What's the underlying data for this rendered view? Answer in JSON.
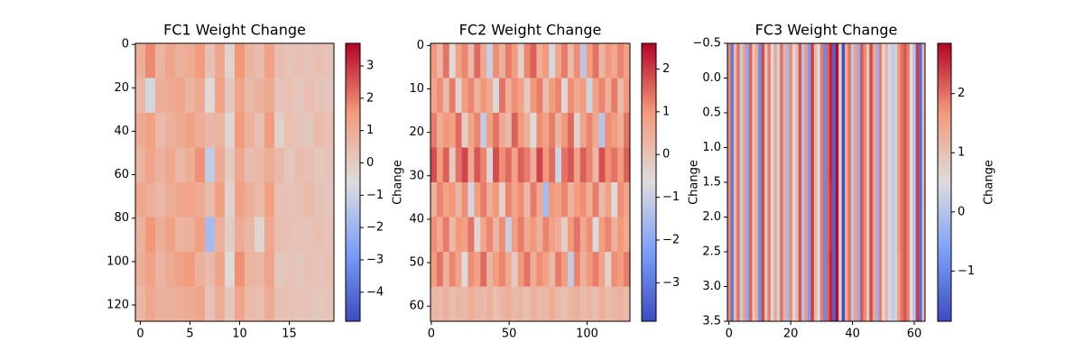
{
  "chart_data": [
    {
      "type": "heatmap",
      "title": "FC1 Weight Change",
      "colormap": "coolwarm",
      "xlim": [
        -0.5,
        19.5
      ],
      "ylim": [
        127.5,
        -0.5
      ],
      "xticks": [
        0,
        5,
        10,
        15
      ],
      "yticks": [
        0,
        20,
        40,
        60,
        80,
        100,
        120
      ],
      "values": [
        [
          0.9,
          1.8,
          0.7,
          1.2,
          0.8,
          1.0,
          1.5,
          0.3,
          1.1,
          -0.3,
          1.6,
          0.7,
          0.4,
          1.3,
          0.4,
          0.2,
          0.3,
          0.2,
          0.3,
          0.2
        ],
        [
          0.6,
          -0.8,
          0.9,
          1.0,
          1.2,
          0.7,
          1.1,
          -0.5,
          1.3,
          0.1,
          1.2,
          0.5,
          0.8,
          1.0,
          0.2,
          0.3,
          0.1,
          0.4,
          0.2,
          0.1
        ],
        [
          1.0,
          1.4,
          0.5,
          0.8,
          1.0,
          1.3,
          0.9,
          0.6,
          0.7,
          -0.4,
          1.5,
          0.8,
          0.3,
          1.5,
          -0.2,
          0.3,
          0.2,
          0.1,
          0.5,
          0.3
        ],
        [
          0.7,
          1.2,
          0.8,
          1.1,
          0.6,
          0.9,
          1.7,
          -1.2,
          1.0,
          0.0,
          1.1,
          0.4,
          0.6,
          0.9,
          0.5,
          0.1,
          0.4,
          0.3,
          0.1,
          0.2
        ],
        [
          1.1,
          0.9,
          0.6,
          0.9,
          1.1,
          1.2,
          1.0,
          0.4,
          1.4,
          -0.3,
          1.3,
          0.9,
          0.5,
          1.4,
          0.3,
          0.2,
          0.3,
          0.5,
          0.2,
          0.1
        ],
        [
          0.8,
          1.6,
          0.9,
          1.3,
          0.7,
          0.8,
          1.4,
          -1.8,
          0.8,
          -0.1,
          1.0,
          0.6,
          -0.4,
          1.1,
          0.4,
          0.3,
          0.2,
          0.2,
          0.3,
          0.2
        ],
        [
          0.9,
          1.3,
          0.7,
          1.0,
          1.3,
          1.5,
          0.8,
          0.5,
          1.2,
          -0.5,
          1.7,
          0.7,
          0.6,
          1.2,
          0.1,
          0.2,
          0.1,
          0.3,
          0.2,
          0.3
        ],
        [
          0.6,
          1.1,
          0.8,
          0.8,
          0.9,
          1.0,
          1.2,
          0.2,
          0.9,
          0.1,
          1.2,
          0.5,
          0.4,
          1.0,
          0.3,
          0.3,
          0.2,
          0.2,
          0.1,
          0.2
        ]
      ],
      "colorbar": {
        "label": "Change",
        "lim": [
          -4.9,
          3.7
        ],
        "ticks": [
          {
            "value": -4,
            "label": "−4"
          },
          {
            "value": -3,
            "label": "−3"
          },
          {
            "value": -2,
            "label": "−2"
          },
          {
            "value": -1,
            "label": "−1"
          },
          0,
          1,
          2,
          3
        ]
      }
    },
    {
      "type": "heatmap",
      "title": "FC2 Weight Change",
      "colormap": "coolwarm",
      "xlim": [
        -0.5,
        127.5
      ],
      "ylim": [
        63.5,
        -0.5
      ],
      "xticks": [
        0,
        50,
        100
      ],
      "yticks": [
        0,
        10,
        20,
        30,
        40,
        50,
        60
      ],
      "values": [
        [
          1.0,
          0.3,
          1.4,
          -0.6,
          0.8,
          1.2,
          0.2,
          1.5,
          0.6,
          -1.0,
          1.1,
          0.4,
          1.3,
          0.9,
          -0.3,
          1.2,
          1.6,
          0.5,
          1.0,
          -0.8,
          0.7,
          1.3,
          0.2,
          1.1,
          -1.2,
          0.9,
          1.4,
          0.3,
          1.0,
          0.6,
          1.2,
          0.8
        ],
        [
          0.7,
          1.1,
          0.2,
          1.3,
          -0.4,
          0.9,
          1.2,
          0.4,
          1.0,
          0.6,
          -0.7,
          1.4,
          0.5,
          1.1,
          0.8,
          -0.2,
          1.0,
          1.3,
          0.1,
          0.9,
          1.2,
          -0.5,
          1.1,
          0.6,
          0.9,
          -0.9,
          0.8,
          1.2,
          0.4,
          1.3,
          0.2,
          1.0
        ],
        [
          1.3,
          0.5,
          1.0,
          0.8,
          1.5,
          -0.3,
          0.7,
          1.2,
          -1.1,
          0.9,
          1.4,
          0.6,
          0.2,
          1.6,
          1.0,
          0.4,
          -0.6,
          1.1,
          0.8,
          1.3,
          0.3,
          1.0,
          1.5,
          -0.4,
          0.7,
          1.2,
          0.6,
          -1.3,
          1.1,
          0.9,
          0.5,
          1.4
        ],
        [
          1.8,
          0.9,
          1.6,
          -0.2,
          1.4,
          1.9,
          0.6,
          1.7,
          1.2,
          -0.5,
          1.8,
          1.1,
          1.5,
          0.8,
          1.6,
          1.3,
          0.4,
          1.9,
          1.0,
          1.5,
          -0.9,
          1.4,
          1.7,
          0.7,
          1.6,
          1.2,
          0.3,
          1.8,
          1.1,
          1.4,
          0.9,
          1.6
        ],
        [
          0.4,
          1.2,
          0.8,
          1.0,
          0.3,
          1.1,
          -0.8,
          0.9,
          1.3,
          0.5,
          1.0,
          -0.4,
          1.2,
          0.7,
          1.1,
          0.2,
          1.3,
          0.6,
          -1.5,
          1.0,
          0.8,
          1.2,
          0.4,
          0.9,
          1.1,
          0.5,
          1.3,
          0.2,
          0.8,
          -0.6,
          1.1,
          0.7
        ],
        [
          1.1,
          0.6,
          1.3,
          0.2,
          1.0,
          0.8,
          1.4,
          -0.5,
          0.7,
          1.2,
          0.3,
          1.1,
          -1.0,
          0.9,
          1.3,
          0.6,
          1.0,
          0.4,
          1.2,
          0.8,
          0.5,
          -0.3,
          1.0,
          1.4,
          0.6,
          1.1,
          -0.7,
          0.9,
          1.2,
          0.4,
          1.0,
          0.6
        ],
        [
          0.9,
          1.4,
          0.4,
          1.2,
          0.7,
          -0.6,
          1.1,
          0.8,
          1.5,
          0.3,
          0.9,
          1.2,
          0.6,
          -0.2,
          1.0,
          1.4,
          0.5,
          1.1,
          0.8,
          0.2,
          1.3,
          0.9,
          -1.1,
          1.2,
          0.4,
          1.0,
          1.3,
          0.7,
          -0.4,
          1.1,
          0.9,
          1.3
        ],
        [
          0.3,
          0.2,
          0.4,
          0.1,
          0.3,
          0.2,
          0.5,
          0.3,
          0.2,
          0.4,
          0.1,
          0.3,
          0.5,
          0.2,
          0.3,
          0.1,
          0.4,
          0.2,
          0.3,
          0.5,
          0.2,
          0.1,
          0.3,
          0.4,
          0.2,
          0.3,
          0.1,
          0.5,
          0.2,
          0.3,
          0.4,
          0.2
        ]
      ],
      "colorbar": {
        "label": "Change",
        "lim": [
          -3.9,
          2.6
        ],
        "ticks": [
          {
            "value": -3,
            "label": "−3"
          },
          {
            "value": -2,
            "label": "−2"
          },
          {
            "value": -1,
            "label": "−1"
          },
          0,
          1,
          2
        ]
      }
    },
    {
      "type": "heatmap",
      "title": "FC3 Weight Change",
      "colormap": "coolwarm",
      "xlim": [
        -0.5,
        63.5
      ],
      "ylim": [
        3.5,
        -0.5
      ],
      "xticks": [
        0,
        20,
        40,
        60
      ],
      "yticks": [
        {
          "value": -0.5,
          "label": "−0.5"
        },
        {
          "value": 0,
          "label": "0.0"
        },
        0.5,
        {
          "value": 1,
          "label": "1.0"
        },
        1.5,
        {
          "value": 2,
          "label": "2.0"
        },
        2.5,
        {
          "value": 3,
          "label": "3.0"
        },
        3.5
      ],
      "values": [
        [
          1.8,
          -1.2,
          1.2,
          2.0,
          0.2,
          1.6,
          -0.5,
          2.1,
          0.9,
          1.4,
          -0.9,
          2.3,
          1.0,
          1.9,
          0.4,
          1.5,
          0.3,
          2.0,
          1.3,
          -0.2,
          1.8,
          0.6,
          1.1,
          2.2,
          0.0,
          1.7,
          -0.7,
          2.4,
          1.2,
          0.5,
          1.9,
          -1.0,
          2.1,
          2.6,
          -1.5,
          2.8,
          0.7,
          -1.8,
          1.4,
          2.0,
          0.1,
          1.6,
          -0.4,
          2.2,
          1.8,
          0.9,
          2.3,
          1.5,
          -0.3,
          1.9,
          0.6,
          1.2,
          0.4,
          0.2,
          0.3,
          1.7,
          2.0,
          2.2,
          1.9,
          0.5,
          0.0,
          2.4,
          -1.4,
          1.1
        ],
        [
          1.8,
          -1.2,
          1.2,
          2.0,
          0.2,
          1.6,
          -0.5,
          2.1,
          0.9,
          1.4,
          -0.9,
          2.3,
          1.0,
          1.9,
          0.4,
          1.5,
          0.3,
          2.0,
          1.3,
          -0.2,
          1.8,
          0.6,
          1.1,
          2.2,
          0.0,
          1.7,
          -0.7,
          2.4,
          1.2,
          0.5,
          1.9,
          -1.0,
          2.1,
          2.6,
          -1.5,
          2.8,
          0.7,
          -1.8,
          1.4,
          2.0,
          0.1,
          1.6,
          -0.4,
          2.2,
          1.8,
          0.9,
          2.3,
          1.5,
          -0.3,
          1.9,
          0.6,
          1.2,
          0.4,
          0.2,
          0.3,
          1.7,
          2.0,
          2.2,
          1.9,
          0.5,
          0.0,
          2.4,
          -1.4,
          1.1
        ],
        [
          1.8,
          -1.2,
          1.2,
          2.0,
          0.2,
          1.6,
          -0.5,
          2.1,
          0.9,
          1.4,
          -0.9,
          2.3,
          1.0,
          1.9,
          0.4,
          1.5,
          0.3,
          2.0,
          1.3,
          -0.2,
          1.8,
          0.6,
          1.1,
          2.2,
          0.0,
          1.7,
          -0.7,
          2.4,
          1.2,
          0.5,
          1.9,
          -1.0,
          2.1,
          2.5,
          -1.5,
          2.8,
          0.7,
          -1.8,
          1.4,
          2.0,
          0.1,
          1.6,
          -0.4,
          2.2,
          1.8,
          0.9,
          2.3,
          1.5,
          -0.3,
          1.9,
          0.6,
          1.2,
          0.4,
          0.2,
          0.3,
          1.7,
          2.0,
          2.2,
          1.9,
          0.5,
          0.0,
          2.4,
          -1.4,
          1.1
        ],
        [
          1.8,
          -1.2,
          1.2,
          2.0,
          0.2,
          1.6,
          -0.5,
          2.1,
          0.9,
          1.4,
          -0.9,
          2.3,
          1.0,
          1.9,
          0.4,
          1.5,
          0.3,
          2.0,
          1.3,
          -0.2,
          1.8,
          0.6,
          1.1,
          2.2,
          0.0,
          1.7,
          -0.7,
          2.4,
          1.2,
          0.5,
          1.9,
          -1.0,
          2.1,
          2.6,
          -1.5,
          2.8,
          0.7,
          -1.8,
          1.4,
          2.0,
          0.1,
          1.6,
          -0.4,
          2.2,
          1.8,
          0.9,
          2.3,
          1.5,
          -0.3,
          1.9,
          0.6,
          1.2,
          0.4,
          0.2,
          0.3,
          1.6,
          2.0,
          2.2,
          1.9,
          0.5,
          0.0,
          2.4,
          -1.4,
          1.1
        ]
      ],
      "colorbar": {
        "label": "Change",
        "lim": [
          -1.85,
          2.85
        ],
        "ticks": [
          {
            "value": -1,
            "label": "−1"
          },
          0,
          1,
          2
        ]
      }
    }
  ]
}
